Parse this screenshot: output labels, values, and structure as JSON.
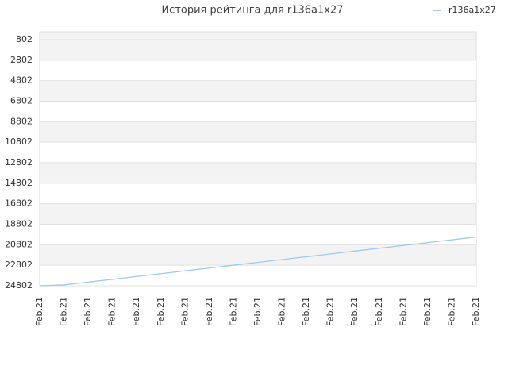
{
  "chart_data": {
    "type": "line",
    "title": "История рейтинга для r136a1x27",
    "categories": [
      "Feb.21",
      "Feb.21",
      "Feb.21",
      "Feb.21",
      "Feb.21",
      "Feb.21",
      "Feb.21",
      "Feb.21",
      "Feb.21",
      "Feb.21",
      "Feb.21",
      "Feb.21",
      "Feb.21",
      "Feb.21",
      "Feb.21",
      "Feb.21",
      "Feb.21",
      "Feb.21",
      "Feb.21"
    ],
    "series": [
      {
        "name": "r136a1x27",
        "color": "#9ccaf0",
        "values": [
          24790,
          24720,
          24445,
          24170,
          23895,
          23620,
          23345,
          23070,
          22795,
          22520,
          22245,
          21970,
          21695,
          21420,
          21145,
          20870,
          20595,
          20320,
          20045
        ]
      }
    ],
    "ylim": [
      24802,
      28
    ],
    "yticks": [
      802,
      2802,
      4802,
      6802,
      8802,
      10802,
      12802,
      14802,
      16802,
      18802,
      20802,
      22802,
      24802
    ],
    "y_inverted": true,
    "grid": true,
    "legend": "top-right"
  }
}
